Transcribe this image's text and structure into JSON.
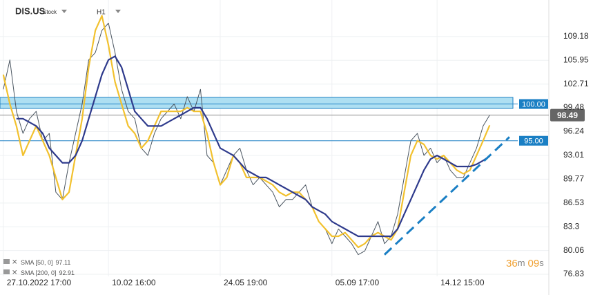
{
  "header": {
    "symbol": "DIS.US",
    "kind": "Stock",
    "interval": "H1"
  },
  "countdown": {
    "minutes": "36",
    "minutes_unit": "m",
    "seconds": "09",
    "seconds_unit": "s"
  },
  "chart_data": {
    "type": "line",
    "x": [
      0,
      1,
      2,
      3,
      4,
      5,
      6,
      7,
      8,
      9,
      10,
      11,
      12,
      13,
      14,
      15,
      16,
      17,
      18,
      19,
      20,
      21,
      22,
      23,
      24,
      25,
      26,
      27,
      28,
      29,
      30,
      31,
      32,
      33,
      34,
      35,
      36,
      37,
      38,
      39,
      40,
      41,
      42,
      43,
      44,
      45,
      46,
      47,
      48,
      49,
      50,
      51,
      52,
      53,
      54,
      55,
      56,
      57,
      58,
      59,
      60,
      61,
      62,
      63,
      64,
      65,
      66,
      67,
      68,
      69,
      70,
      71,
      72,
      73,
      74
    ],
    "xlim": [
      -0.5,
      83
    ],
    "xticks": [
      {
        "value": 0,
        "label": "27.10.2022 17:00"
      },
      {
        "value": 16,
        "label": "10.02 16:00"
      },
      {
        "value": 33,
        "label": "24.05 19:00"
      },
      {
        "value": 50,
        "label": "05.09 17:00"
      },
      {
        "value": 66,
        "label": "14.12 15:00"
      }
    ],
    "ylim": [
      76.55,
      114.15
    ],
    "yticks": [
      109.18,
      105.95,
      102.71,
      99.48,
      96.24,
      93.01,
      89.77,
      86.53,
      83.3,
      80.06,
      76.83
    ],
    "grid": true,
    "series": [
      {
        "color": "#4a5560",
        "values": [
          102,
          106,
          99,
          96,
          98,
          99,
          95,
          96,
          88,
          87,
          92,
          96,
          100,
          106,
          107,
          110,
          111,
          107,
          102,
          99,
          98,
          94,
          93,
          96,
          98,
          99,
          100,
          98,
          101,
          99,
          102,
          93,
          92,
          89,
          91,
          93,
          94,
          91,
          89,
          90,
          89,
          88,
          86,
          87,
          87,
          88,
          89,
          86,
          84,
          83,
          81,
          83,
          82,
          81,
          79.5,
          80,
          82,
          84,
          81,
          82,
          85,
          90,
          95,
          96,
          93,
          94,
          92,
          93,
          91,
          90,
          90,
          92,
          94,
          97,
          98.49
        ]
      },
      {
        "name": "SMA [50, 0]",
        "color": "#f2c12e",
        "values": [
          104,
          100,
          97,
          93,
          95,
          97,
          95,
          93,
          90,
          87,
          88,
          93,
          98,
          105,
          110,
          112,
          108,
          103,
          100,
          97,
          96,
          94,
          95,
          97,
          99,
          99,
          99,
          99,
          99.5,
          99,
          99,
          96,
          92,
          89,
          90,
          93,
          92,
          90,
          90,
          90,
          89.5,
          89,
          88,
          87.5,
          88,
          88,
          87,
          86,
          84,
          83,
          82,
          82,
          82.5,
          81.5,
          80.5,
          81,
          82,
          82.5,
          82,
          81.5,
          83,
          88,
          93,
          95,
          94.5,
          93,
          92.5,
          93,
          92,
          91,
          90.5,
          91,
          93,
          95,
          97.11
        ]
      },
      {
        "name": "SMA [200, 0]",
        "color": "#2e3a8c",
        "values": [
          null,
          null,
          98,
          98,
          97.5,
          97,
          96,
          94,
          93,
          92,
          92,
          93,
          95,
          98,
          101,
          104,
          106,
          106.5,
          105,
          102,
          99,
          98,
          97,
          97,
          97,
          97.5,
          98,
          98.5,
          99,
          99.5,
          99.5,
          98,
          96,
          94,
          93.5,
          93,
          92,
          91,
          90.5,
          90,
          90,
          89.5,
          89,
          88.5,
          88,
          87.5,
          87,
          86,
          85.5,
          85,
          84,
          83.5,
          83,
          82.5,
          82,
          82,
          82,
          82,
          82,
          82,
          83,
          85,
          87,
          89,
          91,
          92.5,
          93,
          92.5,
          92,
          91.5,
          91.5,
          91.5,
          91.8,
          92.3,
          92.91
        ]
      }
    ],
    "levels": [
      {
        "value": 100,
        "label": "100.00",
        "band": [
          99.4,
          100.9
        ]
      },
      {
        "value": 95,
        "label": "95.00"
      }
    ],
    "current_price": {
      "value": 98.49,
      "label": "98.49"
    },
    "trendline": {
      "x": [
        58,
        77
      ],
      "y": [
        79.5,
        95.5
      ]
    }
  }
}
